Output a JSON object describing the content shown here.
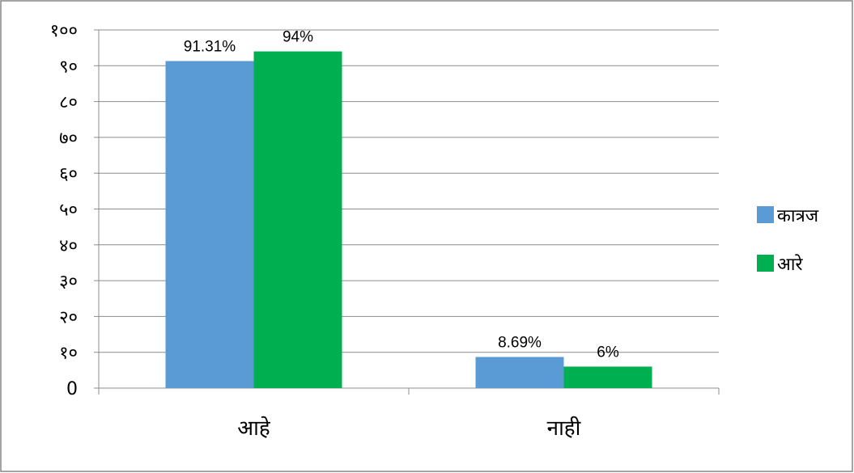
{
  "chart_data": {
    "type": "bar",
    "categories": [
      "आहे",
      "नाही"
    ],
    "series": [
      {
        "name": "कात्रज",
        "values": [
          91.31,
          8.69
        ],
        "labels": [
          "91.31%",
          "8.69%"
        ],
        "color": "#5b9bd5"
      },
      {
        "name": "आरे",
        "values": [
          94,
          6
        ],
        "labels": [
          "94%",
          "6%"
        ],
        "color": "#00b050"
      }
    ],
    "ylim": [
      0,
      100
    ],
    "yticks": [
      0,
      10,
      20,
      30,
      40,
      50,
      60,
      70,
      80,
      90,
      100
    ],
    "ytick_labels": [
      "0",
      "१०",
      "२०",
      "३०",
      "४०",
      "५०",
      "६०",
      "७०",
      "८०",
      "९०",
      "१००"
    ],
    "grid": true,
    "legend_position": "right",
    "gridline_color": "#8c8c8c",
    "frame_color": "#868686"
  }
}
